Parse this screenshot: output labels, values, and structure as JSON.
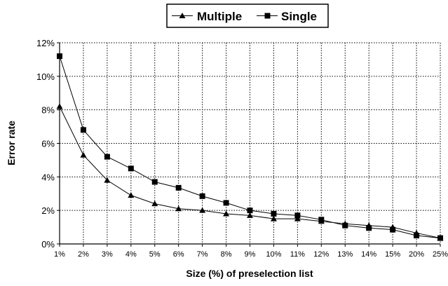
{
  "chart_data": {
    "type": "line",
    "title": "",
    "xlabel": "Size (%) of preselection list",
    "ylabel": "Error rate",
    "categories": [
      "1%",
      "2%",
      "3%",
      "4%",
      "5%",
      "6%",
      "7%",
      "8%",
      "9%",
      "10%",
      "11%",
      "12%",
      "13%",
      "14%",
      "15%",
      "20%",
      "25%"
    ],
    "ylim": [
      0,
      12
    ],
    "yticks": [
      "0%",
      "2%",
      "4%",
      "6%",
      "8%",
      "10%",
      "12%"
    ],
    "grid": true,
    "legend_position": "top",
    "series": [
      {
        "name": "Multiple",
        "marker": "triangle",
        "values": [
          8.2,
          5.3,
          3.8,
          2.9,
          2.4,
          2.1,
          2.0,
          1.8,
          1.7,
          1.5,
          1.5,
          1.35,
          1.2,
          1.1,
          1.0,
          0.65,
          0.35
        ]
      },
      {
        "name": "Single",
        "marker": "square",
        "values": [
          11.2,
          6.8,
          5.2,
          4.5,
          3.7,
          3.35,
          2.85,
          2.45,
          2.0,
          1.8,
          1.7,
          1.45,
          1.1,
          0.95,
          0.85,
          0.5,
          0.35
        ]
      }
    ]
  }
}
